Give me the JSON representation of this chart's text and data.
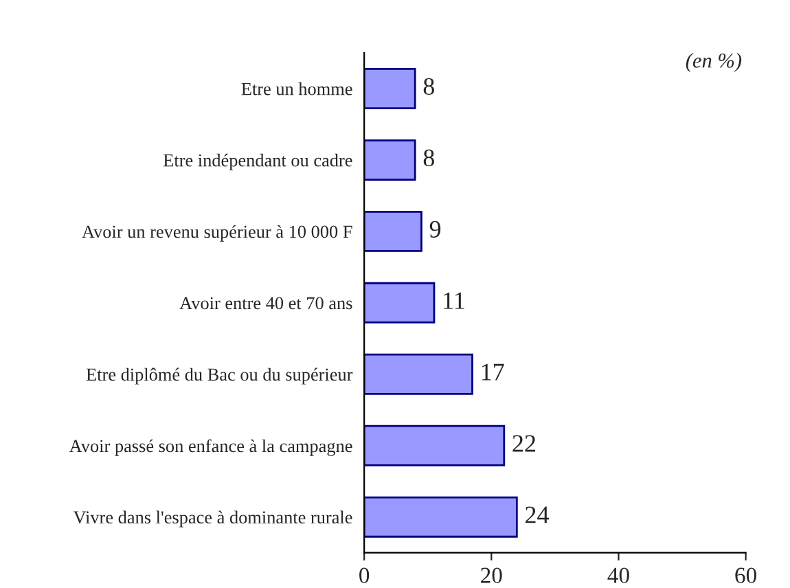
{
  "chart_data": {
    "type": "bar",
    "orientation": "horizontal",
    "categories": [
      "Etre un homme",
      "Etre indépendant ou cadre",
      "Avoir un revenu supérieur à 10 000 F",
      "Avoir entre 40 et 70 ans",
      "Etre diplômé du Bac ou du supérieur",
      "Avoir passé son enfance à la campagne",
      "Vivre dans l'espace à dominante rurale"
    ],
    "values": [
      8,
      8,
      9,
      11,
      17,
      22,
      24
    ],
    "color": "#9999ff",
    "xlim": [
      0,
      60
    ],
    "xticks": [
      0,
      20,
      40,
      60
    ],
    "data_labels": true,
    "grid": false,
    "legend": false,
    "annotations": [
      "(en %)"
    ]
  }
}
